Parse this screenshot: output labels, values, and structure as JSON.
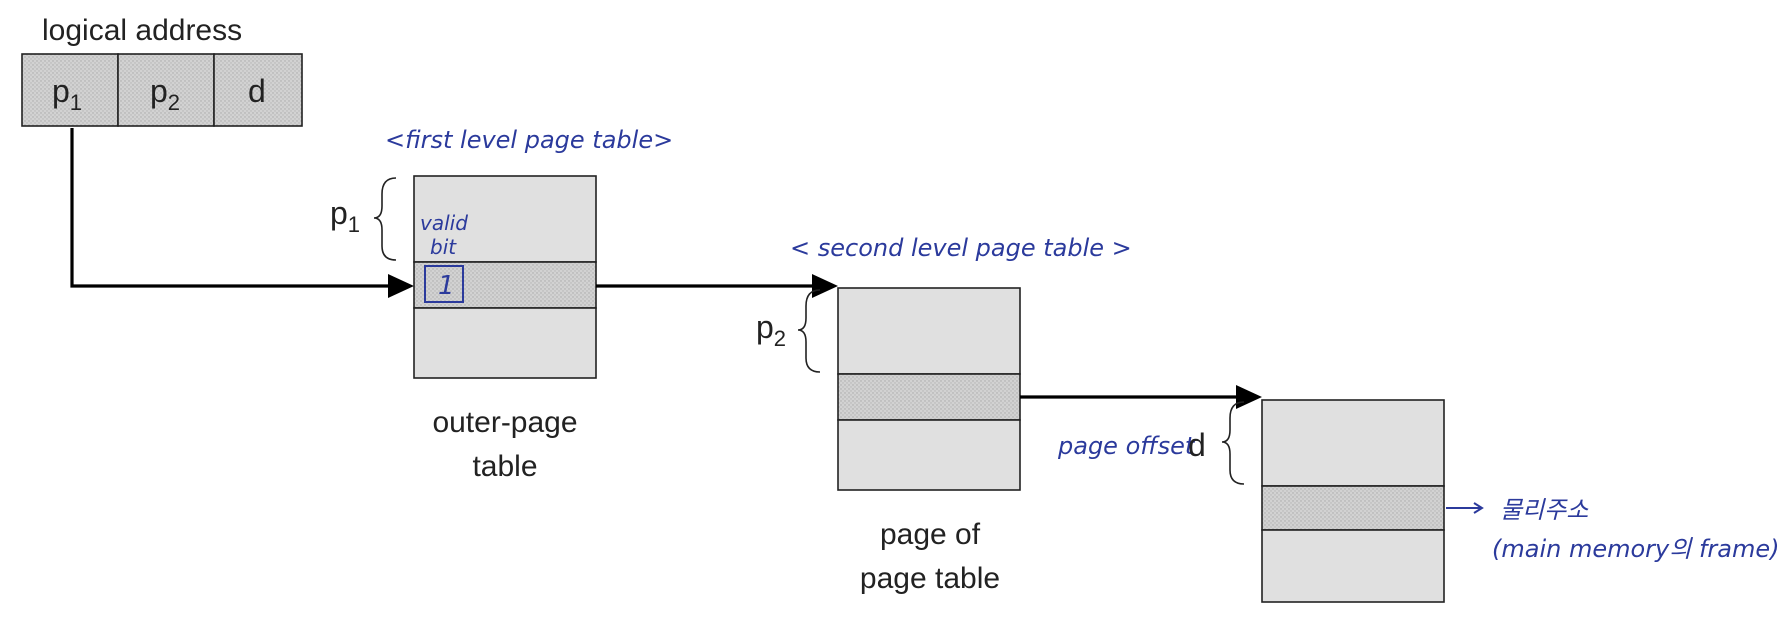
{
  "logical_address": {
    "title": "logical address",
    "fields": [
      {
        "main": "p",
        "sub": "1"
      },
      {
        "main": "p",
        "sub": "2"
      },
      {
        "main": "d",
        "sub": ""
      }
    ]
  },
  "outer_table": {
    "brace_label": {
      "main": "p",
      "sub": "1"
    },
    "caption_line1": "outer-page",
    "caption_line2": "table",
    "annotation": "<first level page table>",
    "valid_bit_line1": "valid",
    "valid_bit_line2": "bit",
    "valid_bit_value": "1"
  },
  "inner_table": {
    "brace_label": {
      "main": "p",
      "sub": "2"
    },
    "caption_line1": "page of",
    "caption_line2": "page table",
    "annotation": "< second level page table >"
  },
  "memory_frame": {
    "brace_label": "d",
    "offset_annotation": "page offset",
    "physical_note_line1": "물리주소",
    "physical_note_line2": "(main memory의 frame)"
  },
  "colors": {
    "box_fill": "#e0e0e0",
    "selected_fill": "#c8c8c8",
    "line": "#000000",
    "handwriting": "#2b3a9c"
  }
}
